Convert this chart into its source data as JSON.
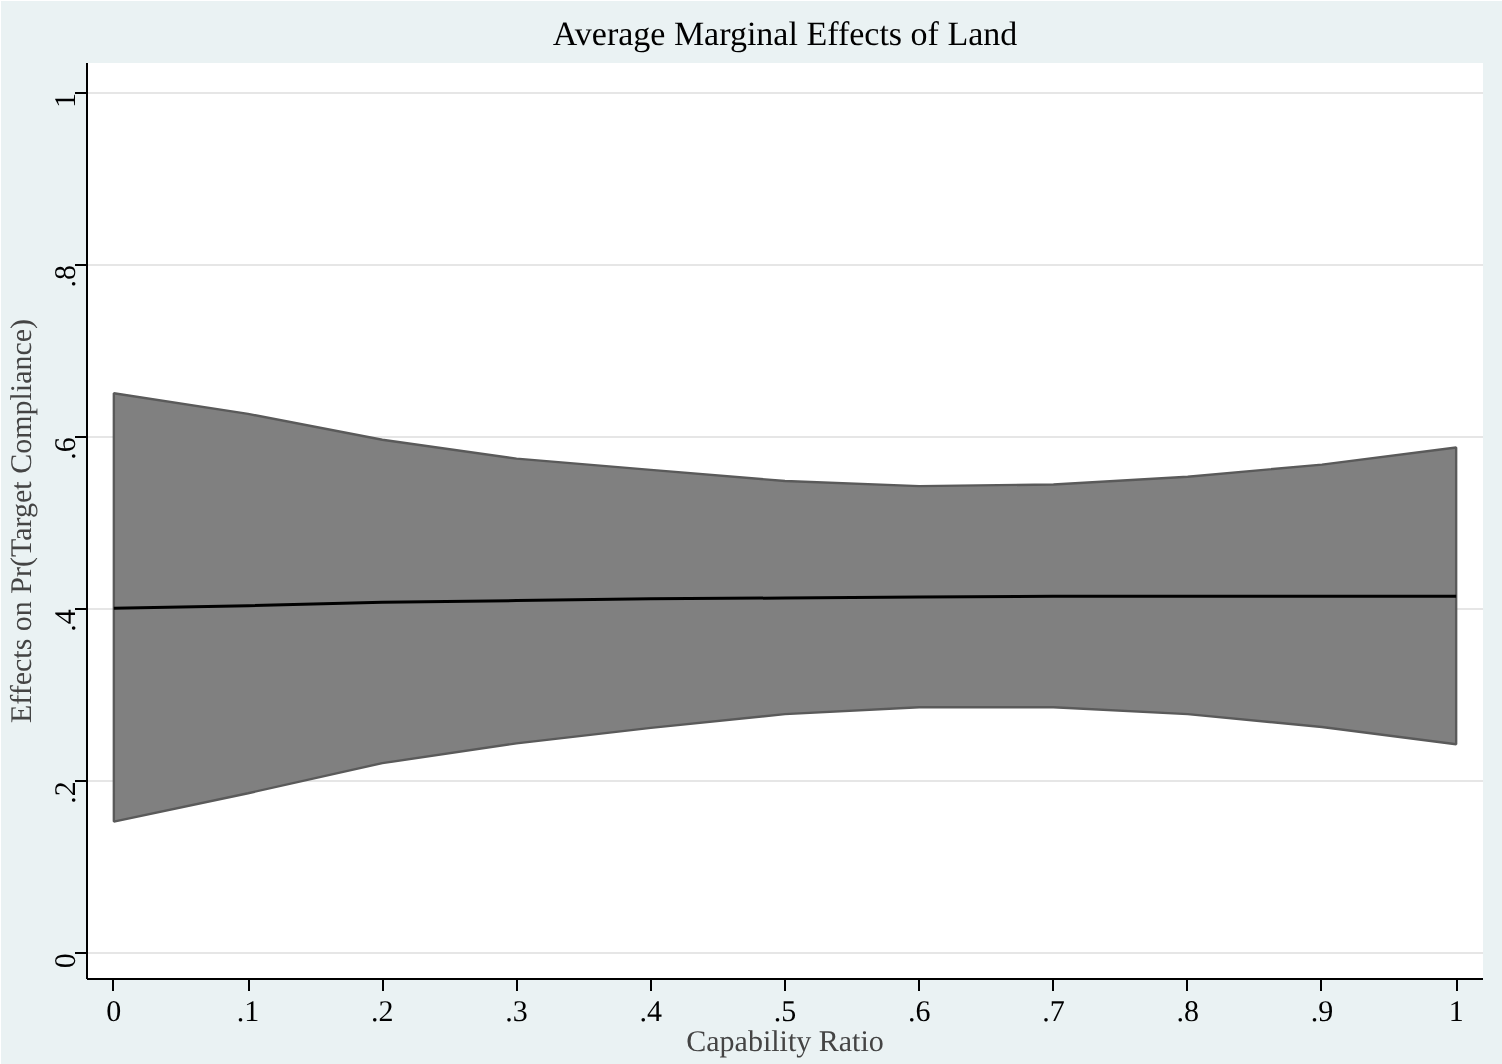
{
  "chart_data": {
    "type": "line",
    "title": "Average Marginal Effects of Land",
    "xlabel": "Capability Ratio",
    "ylabel": "Effects on Pr(Target Compliance)",
    "x": [
      0,
      0.1,
      0.2,
      0.3,
      0.4,
      0.5,
      0.6,
      0.7,
      0.8,
      0.9,
      1
    ],
    "series": [
      {
        "color": "#000000",
        "values": [
          0.401,
          0.404,
          0.408,
          0.41,
          0.412,
          0.413,
          0.414,
          0.415,
          0.415,
          0.415,
          0.415
        ],
        "lower": [
          0.153,
          0.186,
          0.221,
          0.244,
          0.262,
          0.278,
          0.286,
          0.286,
          0.278,
          0.263,
          0.243
        ],
        "upper": [
          0.651,
          0.627,
          0.597,
          0.575,
          0.562,
          0.549,
          0.543,
          0.545,
          0.554,
          0.568,
          0.588
        ]
      }
    ],
    "xlim": [
      -0.02,
      1.02
    ],
    "ylim": [
      -0.03,
      1.035
    ],
    "xticks": [
      {
        "value": 0,
        "label": "0"
      },
      {
        "value": 0.1,
        "label": ".1"
      },
      {
        "value": 0.2,
        "label": ".2"
      },
      {
        "value": 0.3,
        "label": ".3"
      },
      {
        "value": 0.4,
        "label": ".4"
      },
      {
        "value": 0.5,
        "label": ".5"
      },
      {
        "value": 0.6,
        "label": ".6"
      },
      {
        "value": 0.7,
        "label": ".7"
      },
      {
        "value": 0.8,
        "label": ".8"
      },
      {
        "value": 0.9,
        "label": ".9"
      },
      {
        "value": 1,
        "label": "1"
      }
    ],
    "yticks": [
      {
        "value": 0,
        "label": "0"
      },
      {
        "value": 0.2,
        "label": ".2"
      },
      {
        "value": 0.4,
        "label": ".4"
      },
      {
        "value": 0.6,
        "label": ".6"
      },
      {
        "value": 0.8,
        "label": ".8"
      },
      {
        "value": 1,
        "label": "1"
      }
    ],
    "grid": "y",
    "line_style": "solid",
    "marker": "none"
  }
}
